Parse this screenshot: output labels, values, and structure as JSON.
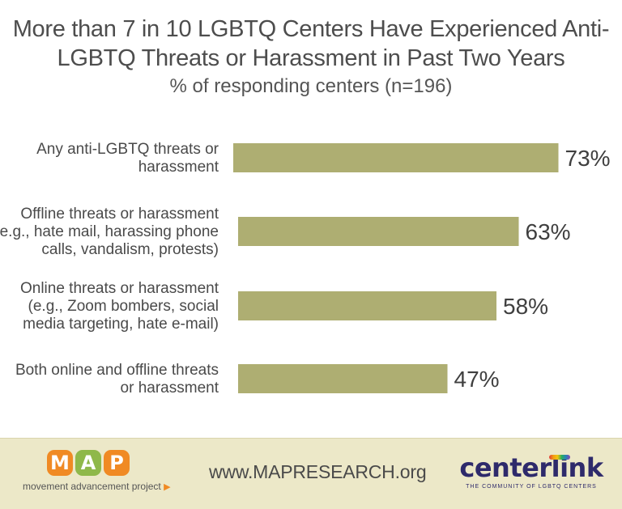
{
  "header": {
    "title_line1": "More than 7 in 10 LGBTQ Centers Have Experienced Anti-",
    "title_line2": "LGBTQ Threats or Harassment in Past Two Years",
    "subtitle": "% of responding centers (n=196)"
  },
  "chart_data": {
    "type": "bar",
    "orientation": "horizontal",
    "categories": [
      [
        "Any anti-LGBTQ threats or",
        "harassment"
      ],
      [
        "Offline threats or harassment",
        "(e.g., hate mail, harassing phone",
        "calls, vandalism, protests)"
      ],
      [
        "Online threats or harassment",
        "(e.g., Zoom bombers, social",
        "media targeting, hate e-mail)"
      ],
      [
        "Both online and offline threats",
        "or harassment"
      ]
    ],
    "values": [
      73,
      63,
      58,
      47
    ],
    "value_labels": [
      "73%",
      "63%",
      "58%",
      "47%"
    ],
    "bar_color": "#aeae72",
    "xlim": [
      0,
      100
    ],
    "grid": false,
    "legend": "none"
  },
  "footer": {
    "map_letters": [
      "M",
      "A",
      "P"
    ],
    "map_colors": [
      "#f08a24",
      "#8fb84a",
      "#f08a24"
    ],
    "map_tagline": "movement advancement project",
    "website": "www.MAPRESEARCH.org",
    "centerlink_name": "centerlink",
    "centerlink_tagline": "THE COMMUNITY OF LGBTQ CENTERS",
    "background_color": "#ece8c8"
  }
}
